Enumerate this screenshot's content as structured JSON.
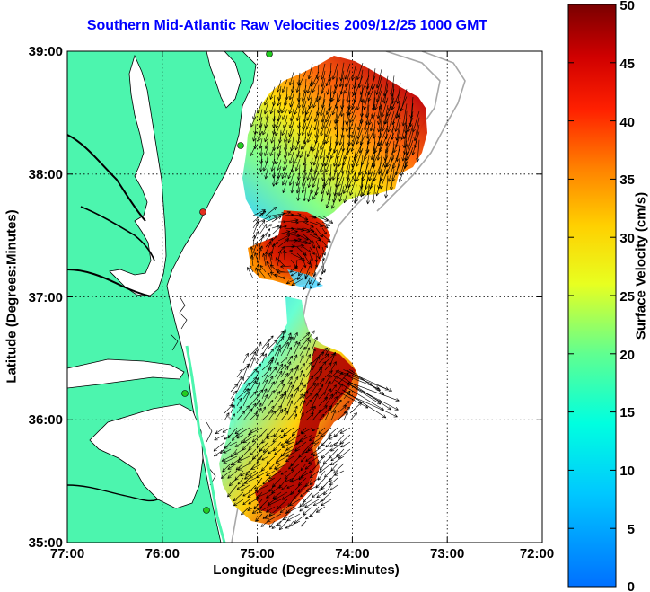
{
  "title": "Southern Mid-Atlantic Raw Velocities 2009/12/25 1000 GMT",
  "x_axis": {
    "label": "Longitude (Degrees:Minutes)",
    "ticks": [
      "77:00",
      "76:00",
      "75:00",
      "74:00",
      "73:00",
      "72:00"
    ]
  },
  "y_axis": {
    "label": "Latitude (Degrees:Minutes)",
    "ticks": [
      "39:00",
      "38:00",
      "37:00",
      "36:00",
      "35:00"
    ]
  },
  "colorbar": {
    "label": "Surface Velocity (cm/s)",
    "ticks": [
      "50",
      "45",
      "40",
      "35",
      "30",
      "25",
      "20",
      "15",
      "10",
      "5",
      "0"
    ],
    "min": 0,
    "max": 50
  },
  "colors": {
    "land": "#4cf5ae",
    "title": "#0000ff",
    "station": "#22cc22",
    "station_red": "#e03020"
  },
  "map_extent": {
    "lon_min": -77,
    "lon_max": -72,
    "lat_min": 35,
    "lat_max": 39
  }
}
